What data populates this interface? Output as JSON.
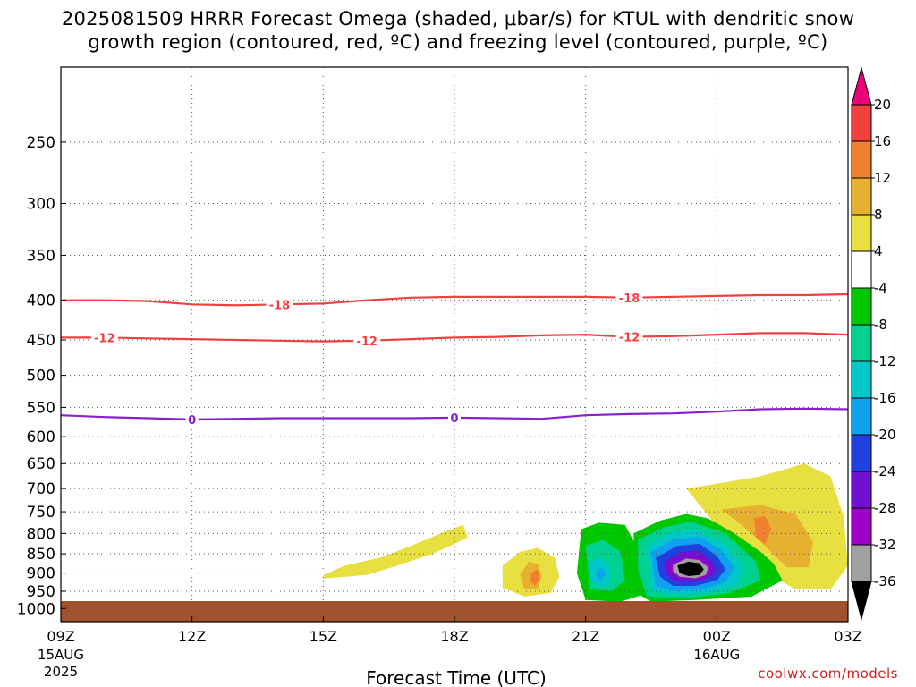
{
  "header": {
    "title_line1": "2025081509 HRRR Forecast Omega (shaded, μbar/s) for KTUL with dendritic snow",
    "title_line2": "growth region (contoured, red, ºC) and freezing level (contoured, purple, ºC)"
  },
  "credit": "coolwx.com/models",
  "chart_data": {
    "type": "heatmap",
    "title": "2025081509 HRRR Forecast Omega (shaded, μbar/s) for KTUL with dendritic snow growth region (contoured, red, ºC) and freezing level (contoured, purple, ºC)",
    "xlabel": "Forecast Time (UTC)",
    "ylabel": "",
    "x_hours": [
      9,
      12,
      15,
      18,
      21,
      24,
      27
    ],
    "x_ticks": [
      {
        "label": "09Z",
        "sub": [
          "15AUG",
          "2025"
        ]
      },
      {
        "label": "12Z",
        "sub": []
      },
      {
        "label": "15Z",
        "sub": []
      },
      {
        "label": "18Z",
        "sub": []
      },
      {
        "label": "21Z",
        "sub": []
      },
      {
        "label": "00Z",
        "sub": [
          "16AUG"
        ]
      },
      {
        "label": "03Z",
        "sub": []
      }
    ],
    "xlim": [
      9,
      27
    ],
    "y_ticks": [
      "250",
      "300",
      "350",
      "400",
      "450",
      "500",
      "550",
      "600",
      "650",
      "700",
      "750",
      "800",
      "850",
      "900",
      "950",
      "1000"
    ],
    "ylim": [
      200,
      1040
    ],
    "y_scale": "log",
    "grid": true,
    "colorbar": {
      "labels": [
        "20",
        "16",
        "12",
        "8",
        "4",
        "-4",
        "-8",
        "-12",
        "-16",
        "-20",
        "-24",
        "-28",
        "-32",
        "-36"
      ],
      "colors": [
        "#ea0078",
        "#f04040",
        "#f08030",
        "#e8b030",
        "#e8e040",
        "#ffffff",
        "#00c800",
        "#00d090",
        "#00c8c8",
        "#10a0f0",
        "#2040e0",
        "#7010d0",
        "#a000c8",
        "#a0a0a0",
        "#000000"
      ]
    },
    "contours": [
      {
        "name": "-18",
        "color": "#f04040",
        "points": [
          [
            9,
            400
          ],
          [
            10,
            400
          ],
          [
            11,
            401
          ],
          [
            12,
            405
          ],
          [
            13,
            406
          ],
          [
            14,
            405
          ],
          [
            15,
            404
          ],
          [
            16,
            400
          ],
          [
            17,
            397
          ],
          [
            18,
            396
          ],
          [
            19,
            396
          ],
          [
            20,
            396
          ],
          [
            21,
            396
          ],
          [
            22,
            397
          ],
          [
            23,
            396
          ],
          [
            24,
            395
          ],
          [
            25,
            394
          ],
          [
            26,
            394
          ],
          [
            27,
            393
          ]
        ],
        "labels_at": [
          14,
          22
        ]
      },
      {
        "name": "-12",
        "color": "#f04040",
        "points": [
          [
            9,
            447
          ],
          [
            10,
            447
          ],
          [
            11,
            448
          ],
          [
            12,
            449
          ],
          [
            13,
            450
          ],
          [
            14,
            451
          ],
          [
            15,
            452
          ],
          [
            16,
            451
          ],
          [
            17,
            449
          ],
          [
            18,
            447
          ],
          [
            19,
            446
          ],
          [
            20,
            444
          ],
          [
            21,
            443
          ],
          [
            22,
            446
          ],
          [
            23,
            445
          ],
          [
            24,
            443
          ],
          [
            25,
            441
          ],
          [
            26,
            441
          ],
          [
            27,
            443
          ]
        ],
        "labels_at": [
          10,
          16,
          22
        ]
      },
      {
        "name": "0",
        "color": "#8a20c8",
        "points": [
          [
            9,
            563
          ],
          [
            10,
            566
          ],
          [
            11,
            568
          ],
          [
            12,
            570
          ],
          [
            13,
            569
          ],
          [
            14,
            568
          ],
          [
            15,
            568
          ],
          [
            16,
            568
          ],
          [
            17,
            568
          ],
          [
            18,
            567
          ],
          [
            19,
            568
          ],
          [
            20,
            569
          ],
          [
            21,
            563
          ],
          [
            22,
            561
          ],
          [
            23,
            560
          ],
          [
            24,
            557
          ],
          [
            25,
            553
          ],
          [
            26,
            552
          ],
          [
            27,
            553
          ]
        ],
        "labels_at": [
          12,
          18
        ]
      }
    ],
    "omega_regions": [
      {
        "level": "4-8",
        "color": "#e8e040",
        "outline": [
          [
            15.0,
            905
          ],
          [
            15.5,
            880
          ],
          [
            16.3,
            860
          ],
          [
            17.0,
            830
          ],
          [
            17.8,
            795
          ],
          [
            18.2,
            780
          ],
          [
            18.3,
            810
          ],
          [
            17.5,
            850
          ],
          [
            16.7,
            880
          ],
          [
            16.0,
            905
          ],
          [
            15.0,
            915
          ]
        ]
      },
      {
        "level": "4-8",
        "color": "#e8e040",
        "outline": [
          [
            19.1,
            880
          ],
          [
            19.5,
            845
          ],
          [
            19.9,
            835
          ],
          [
            20.3,
            860
          ],
          [
            20.4,
            910
          ],
          [
            20.2,
            955
          ],
          [
            19.6,
            965
          ],
          [
            19.1,
            940
          ]
        ]
      },
      {
        "level": "8-12",
        "color": "#e8b030",
        "outline": [
          [
            19.5,
            905
          ],
          [
            19.7,
            870
          ],
          [
            19.9,
            875
          ],
          [
            20.0,
            910
          ],
          [
            19.9,
            945
          ],
          [
            19.6,
            945
          ]
        ]
      },
      {
        "level": "12-16",
        "color": "#f08030",
        "outline": [
          [
            19.75,
            900
          ],
          [
            19.9,
            890
          ],
          [
            19.95,
            915
          ],
          [
            19.85,
            935
          ],
          [
            19.75,
            925
          ]
        ]
      },
      {
        "level": "4-8",
        "color": "#e8e040",
        "outline": [
          [
            23.3,
            700
          ],
          [
            24.0,
            690
          ],
          [
            25.0,
            675
          ],
          [
            26.0,
            650
          ],
          [
            26.6,
            675
          ],
          [
            26.9,
            760
          ],
          [
            27.0,
            880
          ],
          [
            26.6,
            945
          ],
          [
            25.8,
            945
          ],
          [
            25.0,
            890
          ],
          [
            24.3,
            820
          ],
          [
            23.9,
            770
          ]
        ]
      },
      {
        "level": "8-12",
        "color": "#e8b030",
        "outline": [
          [
            24.1,
            745
          ],
          [
            25.0,
            735
          ],
          [
            25.8,
            755
          ],
          [
            26.2,
            820
          ],
          [
            26.1,
            885
          ],
          [
            25.6,
            885
          ],
          [
            25.0,
            820
          ],
          [
            24.5,
            775
          ]
        ]
      },
      {
        "level": "12-16",
        "color": "#f08030",
        "outline": [
          [
            24.85,
            765
          ],
          [
            25.1,
            760
          ],
          [
            25.25,
            790
          ],
          [
            25.1,
            825
          ],
          [
            24.9,
            810
          ]
        ]
      },
      {
        "level": "-8 to -4",
        "color": "#00c800",
        "outline": [
          [
            20.9,
            790
          ],
          [
            21.3,
            775
          ],
          [
            21.9,
            780
          ],
          [
            22.3,
            860
          ],
          [
            22.3,
            960
          ],
          [
            21.8,
            980
          ],
          [
            21.0,
            975
          ],
          [
            20.8,
            900
          ]
        ]
      },
      {
        "level": "-12 to -8",
        "color": "#00d090",
        "outline": [
          [
            21.0,
            830
          ],
          [
            21.4,
            815
          ],
          [
            21.8,
            845
          ],
          [
            21.9,
            920
          ],
          [
            21.6,
            950
          ],
          [
            21.1,
            945
          ]
        ]
      },
      {
        "level": "-16 to -12",
        "color": "#00c8c8",
        "outline": [
          [
            21.1,
            870
          ],
          [
            21.35,
            860
          ],
          [
            21.55,
            880
          ],
          [
            21.55,
            930
          ],
          [
            21.3,
            940
          ],
          [
            21.1,
            915
          ]
        ]
      },
      {
        "level": "-20 to -16",
        "color": "#10a0f0",
        "outline": [
          [
            21.25,
            890
          ],
          [
            21.4,
            888
          ],
          [
            21.45,
            905
          ],
          [
            21.35,
            918
          ],
          [
            21.25,
            908
          ]
        ]
      },
      {
        "level": "-8 to -4",
        "color": "#00c800",
        "outline": [
          [
            22.1,
            800
          ],
          [
            22.7,
            770
          ],
          [
            23.3,
            755
          ],
          [
            23.8,
            765
          ],
          [
            24.4,
            800
          ],
          [
            25.0,
            845
          ],
          [
            25.3,
            875
          ],
          [
            25.5,
            920
          ],
          [
            24.8,
            965
          ],
          [
            23.5,
            975
          ],
          [
            22.5,
            980
          ],
          [
            22.1,
            950
          ]
        ]
      },
      {
        "level": "-12 to -8",
        "color": "#00d090",
        "outline": [
          [
            22.2,
            815
          ],
          [
            22.8,
            785
          ],
          [
            23.4,
            772
          ],
          [
            24.2,
            800
          ],
          [
            24.9,
            870
          ],
          [
            25.0,
            920
          ],
          [
            24.3,
            955
          ],
          [
            23.3,
            970
          ],
          [
            22.4,
            965
          ],
          [
            22.2,
            890
          ]
        ]
      },
      {
        "level": "-16 to -12",
        "color": "#00c8c8",
        "outline": [
          [
            22.4,
            830
          ],
          [
            22.9,
            800
          ],
          [
            23.5,
            790
          ],
          [
            24.2,
            825
          ],
          [
            24.6,
            880
          ],
          [
            24.5,
            930
          ],
          [
            23.9,
            955
          ],
          [
            23.1,
            960
          ],
          [
            22.5,
            950
          ]
        ]
      },
      {
        "level": "-20 to -16",
        "color": "#10a0f0",
        "outline": [
          [
            22.5,
            845
          ],
          [
            23.0,
            815
          ],
          [
            23.6,
            808
          ],
          [
            24.1,
            840
          ],
          [
            24.4,
            885
          ],
          [
            24.2,
            925
          ],
          [
            23.7,
            945
          ],
          [
            23.0,
            950
          ],
          [
            22.6,
            935
          ]
        ]
      },
      {
        "level": "-24 to -20",
        "color": "#2040e0",
        "outline": [
          [
            22.6,
            860
          ],
          [
            23.1,
            830
          ],
          [
            23.6,
            825
          ],
          [
            24.0,
            855
          ],
          [
            24.2,
            890
          ],
          [
            24.0,
            920
          ],
          [
            23.5,
            935
          ],
          [
            23.0,
            935
          ],
          [
            22.7,
            910
          ]
        ]
      },
      {
        "level": "-28 to -24",
        "color": "#7010d0",
        "outline": [
          [
            22.8,
            870
          ],
          [
            23.2,
            845
          ],
          [
            23.6,
            842
          ],
          [
            23.9,
            870
          ],
          [
            24.0,
            895
          ],
          [
            23.8,
            915
          ],
          [
            23.4,
            925
          ],
          [
            23.0,
            920
          ],
          [
            22.85,
            900
          ]
        ]
      },
      {
        "level": "-32 to -28",
        "color": "#a000c8",
        "outline": [
          [
            22.9,
            880
          ],
          [
            23.3,
            860
          ],
          [
            23.6,
            860
          ],
          [
            23.85,
            880
          ],
          [
            23.85,
            902
          ],
          [
            23.6,
            915
          ],
          [
            23.2,
            915
          ],
          [
            22.95,
            900
          ]
        ]
      },
      {
        "level": "-36 to -32",
        "color": "#a0a0a0",
        "outline": [
          [
            23.0,
            878
          ],
          [
            23.3,
            862
          ],
          [
            23.6,
            866
          ],
          [
            23.8,
            885
          ],
          [
            23.75,
            905
          ],
          [
            23.5,
            914
          ],
          [
            23.15,
            910
          ],
          [
            23.0,
            895
          ]
        ]
      },
      {
        "level": "< -36",
        "color": "#000000",
        "outline": [
          [
            23.1,
            880
          ],
          [
            23.35,
            870
          ],
          [
            23.6,
            874
          ],
          [
            23.7,
            890
          ],
          [
            23.6,
            905
          ],
          [
            23.35,
            908
          ],
          [
            23.15,
            900
          ]
        ]
      }
    ],
    "ground_color": "#a0522d"
  }
}
